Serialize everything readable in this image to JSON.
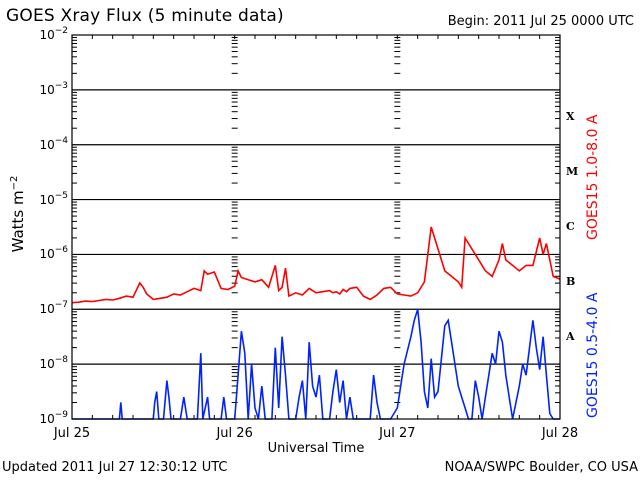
{
  "header": {
    "title": "GOES Xray Flux (5 minute data)",
    "begin": "Begin:  2011 Jul 25 0000 UTC"
  },
  "footer": {
    "updated": "Updated 2011 Jul 27 12:30:12 UTC",
    "credit": "NOAA/SWPC Boulder, CO USA"
  },
  "colors": {
    "long_channel": "#ff0000",
    "short_channel": "#0022ff",
    "grid": "#000000"
  },
  "chart_data": {
    "type": "line",
    "title": "GOES Xray Flux (5 minute data)",
    "xlabel": "Universal Time",
    "ylabel": "Watts m^-2",
    "yscale": "log",
    "ylim": [
      1e-09,
      0.01
    ],
    "xlim_hours": [
      0,
      72
    ],
    "x_ticks": [
      "Jul 25",
      "Jul 26",
      "Jul 27",
      "Jul 28"
    ],
    "y_ticks": [
      {
        "base": "10",
        "exp": "-2"
      },
      {
        "base": "10",
        "exp": "-3"
      },
      {
        "base": "10",
        "exp": "-4"
      },
      {
        "base": "10",
        "exp": "-5"
      },
      {
        "base": "10",
        "exp": "-6"
      },
      {
        "base": "10",
        "exp": "-7"
      },
      {
        "base": "10",
        "exp": "-8"
      },
      {
        "base": "10",
        "exp": "-9"
      }
    ],
    "flare_classes": [
      {
        "label": "X",
        "log_center": -3.5
      },
      {
        "label": "M",
        "log_center": -4.5
      },
      {
        "label": "C",
        "log_center": -5.5
      },
      {
        "label": "B",
        "log_center": -6.5
      },
      {
        "label": "A",
        "log_center": -7.5
      }
    ],
    "grid": "horizontal lines at each decade",
    "legend_position": "right, rotated",
    "series": [
      {
        "name": "GOES15 1.0-8.0 A",
        "color": "#ff0000",
        "points_hours_log10": [
          [
            0,
            -6.88
          ],
          [
            1,
            -6.87
          ],
          [
            2,
            -6.85
          ],
          [
            3,
            -6.86
          ],
          [
            4,
            -6.84
          ],
          [
            5,
            -6.82
          ],
          [
            6,
            -6.83
          ],
          [
            7,
            -6.8
          ],
          [
            8,
            -6.76
          ],
          [
            9,
            -6.78
          ],
          [
            10,
            -6.52
          ],
          [
            10.5,
            -6.6
          ],
          [
            11,
            -6.72
          ],
          [
            12,
            -6.82
          ],
          [
            13,
            -6.8
          ],
          [
            14,
            -6.78
          ],
          [
            15,
            -6.72
          ],
          [
            16,
            -6.74
          ],
          [
            17,
            -6.68
          ],
          [
            18,
            -6.62
          ],
          [
            19,
            -6.66
          ],
          [
            19.5,
            -6.3
          ],
          [
            20,
            -6.36
          ],
          [
            21,
            -6.32
          ],
          [
            22,
            -6.62
          ],
          [
            23,
            -6.64
          ],
          [
            24,
            -6.58
          ],
          [
            24.5,
            -6.3
          ],
          [
            25,
            -6.42
          ],
          [
            26,
            -6.46
          ],
          [
            27,
            -6.5
          ],
          [
            28,
            -6.46
          ],
          [
            29,
            -6.6
          ],
          [
            30,
            -6.2
          ],
          [
            30.5,
            -6.66
          ],
          [
            31,
            -6.6
          ],
          [
            31.5,
            -6.25
          ],
          [
            32,
            -6.76
          ],
          [
            33,
            -6.7
          ],
          [
            34,
            -6.74
          ],
          [
            35,
            -6.62
          ],
          [
            36,
            -6.7
          ],
          [
            37,
            -6.68
          ],
          [
            38,
            -6.66
          ],
          [
            38.5,
            -6.7
          ],
          [
            39,
            -6.68
          ],
          [
            39.5,
            -6.72
          ],
          [
            40,
            -6.64
          ],
          [
            40.5,
            -6.68
          ],
          [
            41,
            -6.62
          ],
          [
            42,
            -6.6
          ],
          [
            43,
            -6.76
          ],
          [
            44,
            -6.82
          ],
          [
            45,
            -6.74
          ],
          [
            46,
            -6.62
          ],
          [
            47,
            -6.6
          ],
          [
            48,
            -6.72
          ],
          [
            49,
            -6.74
          ],
          [
            50,
            -6.76
          ],
          [
            51,
            -6.7
          ],
          [
            52,
            -6.5
          ],
          [
            53,
            -5.5
          ],
          [
            54,
            -5.9
          ],
          [
            55,
            -6.3
          ],
          [
            56,
            -6.4
          ],
          [
            57,
            -6.5
          ],
          [
            57.5,
            -6.6
          ],
          [
            58,
            -5.7
          ],
          [
            59,
            -5.9
          ],
          [
            60,
            -6.1
          ],
          [
            61,
            -6.3
          ],
          [
            62,
            -6.4
          ],
          [
            63,
            -6.1
          ],
          [
            63.5,
            -5.8
          ],
          [
            64,
            -6.1
          ],
          [
            65,
            -6.2
          ],
          [
            66,
            -6.3
          ],
          [
            67,
            -6.2
          ],
          [
            68,
            -6.2
          ],
          [
            69,
            -5.7
          ],
          [
            69.5,
            -6.0
          ],
          [
            70,
            -5.8
          ],
          [
            70.5,
            -6.1
          ],
          [
            71,
            -6.4
          ],
          [
            72,
            -6.45
          ]
        ]
      },
      {
        "name": "GOES15 0.5-4.0 A",
        "color": "#0022ff",
        "points_hours_log10": [
          [
            0,
            -9
          ],
          [
            7,
            -9
          ],
          [
            7.2,
            -8.7
          ],
          [
            7.4,
            -9
          ],
          [
            12,
            -9
          ],
          [
            12.2,
            -8.7
          ],
          [
            12.5,
            -8.5
          ],
          [
            12.8,
            -9
          ],
          [
            13.5,
            -9
          ],
          [
            14,
            -8.3
          ],
          [
            14.3,
            -8.6
          ],
          [
            14.6,
            -9
          ],
          [
            16,
            -9
          ],
          [
            16.5,
            -8.6
          ],
          [
            17,
            -9
          ],
          [
            18.5,
            -9
          ],
          [
            19,
            -7.8
          ],
          [
            19.3,
            -9
          ],
          [
            20,
            -8.6
          ],
          [
            20.3,
            -9
          ],
          [
            22,
            -9
          ],
          [
            22.4,
            -8.6
          ],
          [
            22.8,
            -9
          ],
          [
            24,
            -9
          ],
          [
            24.5,
            -8.2
          ],
          [
            25,
            -7.4
          ],
          [
            25.5,
            -7.8
          ],
          [
            26,
            -9
          ],
          [
            26.5,
            -8.0
          ],
          [
            27,
            -8.8
          ],
          [
            27.5,
            -9
          ],
          [
            28,
            -8.4
          ],
          [
            28.5,
            -9
          ],
          [
            29.5,
            -9
          ],
          [
            30,
            -7.7
          ],
          [
            30.5,
            -8.8
          ],
          [
            31,
            -7.5
          ],
          [
            31.5,
            -8.2
          ],
          [
            32,
            -9
          ],
          [
            33,
            -9
          ],
          [
            33.5,
            -8.6
          ],
          [
            34,
            -8.3
          ],
          [
            34.5,
            -9
          ],
          [
            35,
            -7.6
          ],
          [
            35.5,
            -8.4
          ],
          [
            36,
            -8.6
          ],
          [
            36.5,
            -8.2
          ],
          [
            37,
            -9
          ],
          [
            38,
            -9
          ],
          [
            38.5,
            -8.5
          ],
          [
            39,
            -8.1
          ],
          [
            39.5,
            -8.7
          ],
          [
            40,
            -8.3
          ],
          [
            40.5,
            -9
          ],
          [
            41,
            -8.6
          ],
          [
            41.5,
            -9
          ],
          [
            43,
            -9
          ],
          [
            44,
            -9
          ],
          [
            44.5,
            -8.2
          ],
          [
            45,
            -8.7
          ],
          [
            45.5,
            -9
          ],
          [
            47,
            -9
          ],
          [
            48,
            -8.8
          ],
          [
            49,
            -8.0
          ],
          [
            50,
            -7.5
          ],
          [
            50.5,
            -7.2
          ],
          [
            51,
            -7.0
          ],
          [
            51.5,
            -7.6
          ],
          [
            52,
            -8.5
          ],
          [
            52.5,
            -8.8
          ],
          [
            53,
            -7.9
          ],
          [
            53.5,
            -8.6
          ],
          [
            54,
            -8.5
          ],
          [
            55,
            -7.3
          ],
          [
            55.5,
            -7.2
          ],
          [
            56,
            -7.6
          ],
          [
            57,
            -8.4
          ],
          [
            57.5,
            -8.6
          ],
          [
            58,
            -8.8
          ],
          [
            58.5,
            -9
          ],
          [
            59,
            -9
          ],
          [
            59.5,
            -8.3
          ],
          [
            60,
            -8.6
          ],
          [
            60.5,
            -9
          ],
          [
            61,
            -8.6
          ],
          [
            62,
            -7.8
          ],
          [
            62.5,
            -8.0
          ],
          [
            63,
            -7.4
          ],
          [
            63.5,
            -7.6
          ],
          [
            64,
            -8.2
          ],
          [
            64.5,
            -8.6
          ],
          [
            65,
            -9
          ],
          [
            66,
            -8.4
          ],
          [
            66.5,
            -8.0
          ],
          [
            67,
            -8.2
          ],
          [
            68,
            -7.2
          ],
          [
            68.5,
            -7.7
          ],
          [
            69,
            -8.1
          ],
          [
            69.5,
            -7.5
          ],
          [
            70,
            -8.2
          ],
          [
            70.5,
            -8.9
          ],
          [
            71,
            -9
          ],
          [
            72,
            -9
          ]
        ]
      }
    ]
  }
}
